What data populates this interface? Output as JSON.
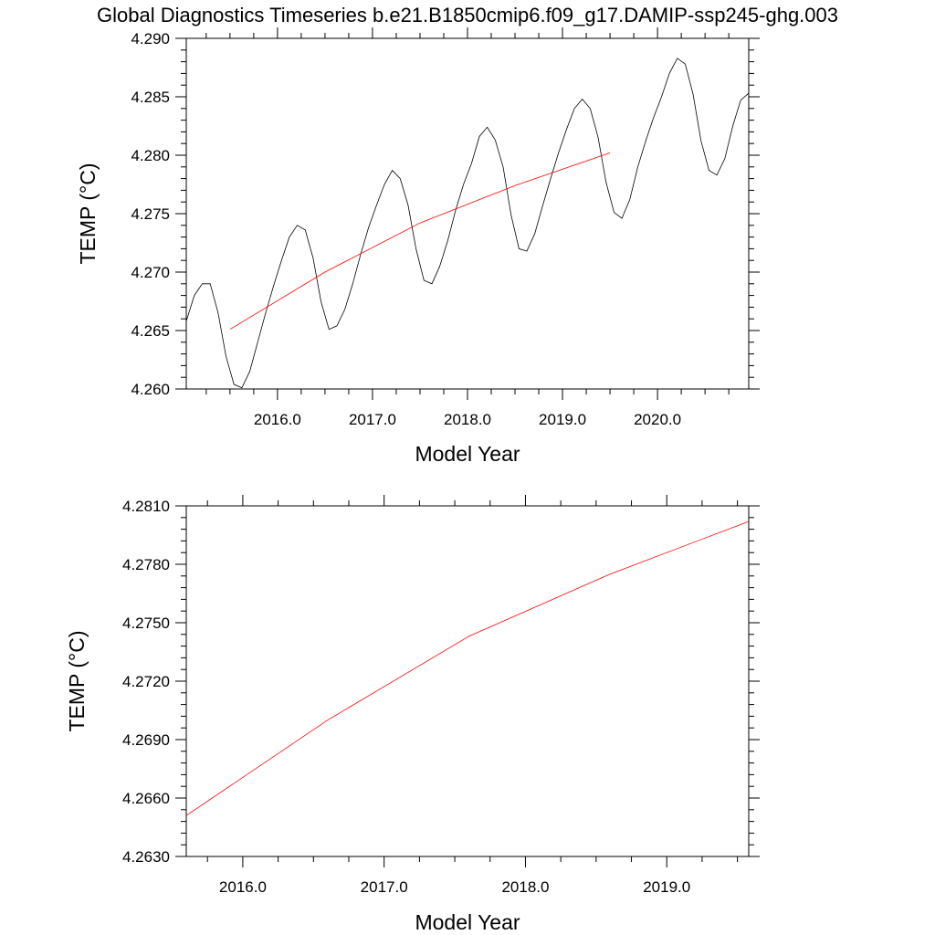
{
  "figure": {
    "title": "Global Diagnostics Timeseries b.e21.B1850cmip6.f09_g17.DAMIP-ssp245-ghg.003"
  },
  "chart_data": [
    {
      "type": "line",
      "xlabel": "Model Year",
      "ylabel": "TEMP (°C)",
      "xlim": [
        2015.04,
        2020.96
      ],
      "ylim": [
        4.26,
        4.29
      ],
      "xticks": [
        2016.0,
        2017.0,
        2018.0,
        2019.0,
        2020.0
      ],
      "xtick_labels": [
        "2016.0",
        "2017.0",
        "2018.0",
        "2019.0",
        "2020.0"
      ],
      "yticks": [
        4.26,
        4.265,
        4.27,
        4.275,
        4.28,
        4.285,
        4.29
      ],
      "ytick_labels": [
        "4.260",
        "4.265",
        "4.270",
        "4.275",
        "4.280",
        "4.285",
        "4.290"
      ],
      "grid": false,
      "series": [
        {
          "color": "#000000",
          "x": [
            2015.04,
            2015.125,
            2015.208,
            2015.292,
            2015.375,
            2015.458,
            2015.542,
            2015.625,
            2015.708,
            2015.792,
            2015.875,
            2015.958,
            2016.042,
            2016.125,
            2016.208,
            2016.292,
            2016.375,
            2016.458,
            2016.542,
            2016.625,
            2016.708,
            2016.792,
            2016.875,
            2016.958,
            2017.042,
            2017.125,
            2017.208,
            2017.292,
            2017.375,
            2017.458,
            2017.542,
            2017.625,
            2017.708,
            2017.792,
            2017.875,
            2017.958,
            2018.042,
            2018.125,
            2018.208,
            2018.292,
            2018.375,
            2018.458,
            2018.542,
            2018.625,
            2018.708,
            2018.792,
            2018.875,
            2018.958,
            2019.042,
            2019.125,
            2019.208,
            2019.292,
            2019.375,
            2019.458,
            2019.542,
            2019.625,
            2019.708,
            2019.792,
            2019.875,
            2019.958,
            2020.042,
            2020.125,
            2020.208,
            2020.292,
            2020.375,
            2020.458,
            2020.542,
            2020.625,
            2020.708,
            2020.792,
            2020.875,
            2020.958
          ],
          "y": [
            4.2658,
            4.268,
            4.269,
            4.269,
            4.2665,
            4.2628,
            4.2604,
            4.2601,
            4.2615,
            4.264,
            4.2665,
            4.2688,
            4.271,
            4.273,
            4.274,
            4.2736,
            4.2712,
            4.2675,
            4.2651,
            4.2654,
            4.2668,
            4.269,
            4.2715,
            4.2738,
            4.2757,
            4.2775,
            4.2787,
            4.278,
            4.2757,
            4.272,
            4.2693,
            4.269,
            4.2705,
            4.2727,
            4.2753,
            4.2775,
            4.2793,
            4.2816,
            4.2824,
            4.2813,
            4.279,
            4.2749,
            4.272,
            4.2718,
            4.2733,
            4.2757,
            4.278,
            4.2802,
            4.2822,
            4.284,
            4.2848,
            4.284,
            4.2815,
            4.2777,
            4.2751,
            4.2746,
            4.2762,
            4.279,
            4.2812,
            4.2832,
            4.285,
            4.287,
            4.2883,
            4.2878,
            4.2852,
            4.2812,
            4.2787,
            4.2783,
            4.2797,
            4.2825,
            4.2847,
            4.2853
          ]
        },
        {
          "color": "#ff0000",
          "x": [
            2015.5,
            2016.5,
            2017.5,
            2018.5,
            2019.5
          ],
          "y": [
            4.2651,
            4.27,
            4.2742,
            4.2774,
            4.2802
          ]
        }
      ]
    },
    {
      "type": "line",
      "xlabel": "Model Year",
      "ylabel": "TEMP (°C)",
      "xlim": [
        2015.6,
        2019.58
      ],
      "ylim": [
        4.263,
        4.281
      ],
      "xticks": [
        2016.0,
        2017.0,
        2018.0,
        2019.0
      ],
      "xtick_labels": [
        "2016.0",
        "2017.0",
        "2018.0",
        "2019.0"
      ],
      "yticks": [
        4.263,
        4.266,
        4.269,
        4.272,
        4.275,
        4.278,
        4.281
      ],
      "ytick_labels": [
        "4.2630",
        "4.2660",
        "4.2690",
        "4.2720",
        "4.2750",
        "4.2780",
        "4.2810"
      ],
      "grid": false,
      "series": [
        {
          "color": "#ff0000",
          "x": [
            2015.6,
            2016.6,
            2017.6,
            2018.6,
            2019.58
          ],
          "y": [
            4.2651,
            4.27,
            4.2743,
            4.2775,
            4.2802
          ]
        }
      ]
    }
  ]
}
